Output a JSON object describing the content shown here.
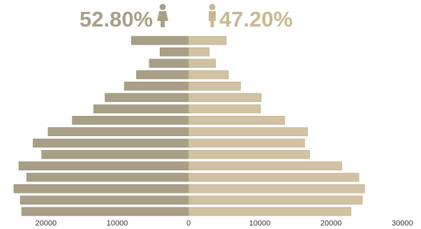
{
  "legend": {
    "female_pct": "52.80%",
    "male_pct": "47.20%",
    "female_icon": "female-person-icon",
    "male_icon": "male-person-icon"
  },
  "colors": {
    "female": "#a89f86",
    "male": "#d0c2a2",
    "female_text": "#a89f86",
    "male_text": "#c7b893"
  },
  "chart_data": {
    "type": "bar",
    "orientation": "horizontal-population-pyramid",
    "xlim": [
      -30000,
      30000
    ],
    "x_ticks": [
      {
        "value": -20000,
        "label": "20000"
      },
      {
        "value": -10000,
        "label": "10000"
      },
      {
        "value": 0,
        "label": "0"
      },
      {
        "value": 10000,
        "label": "10000"
      },
      {
        "value": 20000,
        "label": "20000"
      },
      {
        "value": 30000,
        "label": "30000"
      }
    ],
    "grid": false,
    "series": [
      {
        "name": "52.80%",
        "side": "left",
        "values": [
          8000,
          4000,
          5500,
          7300,
          9000,
          11700,
          13300,
          16300,
          19700,
          21800,
          20600,
          23800,
          22700,
          24500,
          23600,
          23400
        ]
      },
      {
        "name": "47.20%",
        "side": "right",
        "values": [
          5300,
          2900,
          3800,
          5600,
          7300,
          10200,
          10100,
          13500,
          16700,
          16300,
          17000,
          21500,
          23900,
          24700,
          24400,
          22800
        ]
      }
    ]
  }
}
